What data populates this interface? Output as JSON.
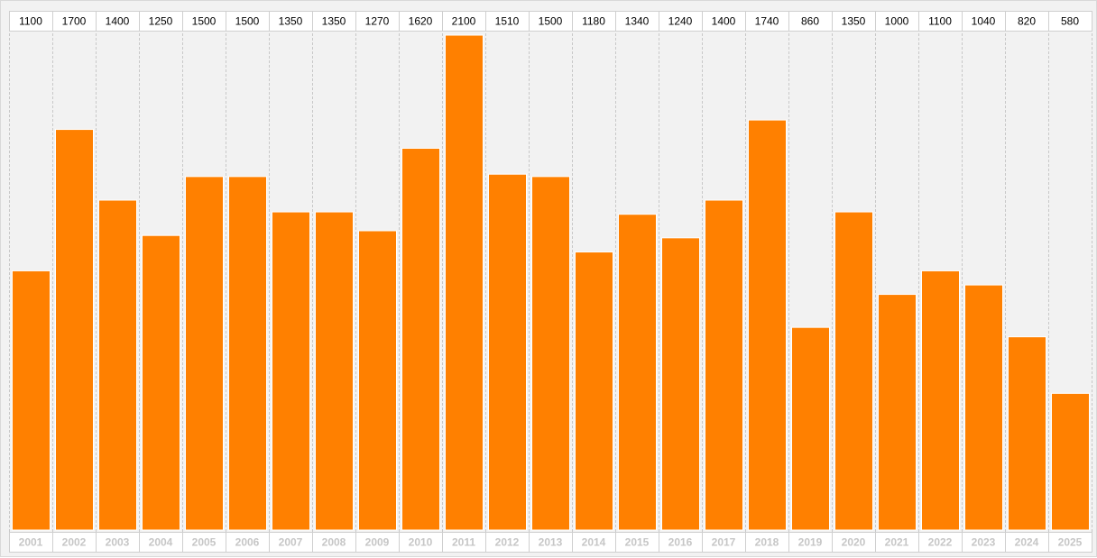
{
  "chart_data": {
    "type": "bar",
    "categories": [
      "2001",
      "2002",
      "2003",
      "2004",
      "2005",
      "2006",
      "2007",
      "2008",
      "2009",
      "2010",
      "2011",
      "2012",
      "2013",
      "2014",
      "2015",
      "2016",
      "2017",
      "2018",
      "2019",
      "2020",
      "2021",
      "2022",
      "2023",
      "2024",
      "2025"
    ],
    "values": [
      1100,
      1700,
      1400,
      1250,
      1500,
      1500,
      1350,
      1350,
      1270,
      1620,
      2100,
      1510,
      1500,
      1180,
      1340,
      1240,
      1400,
      1740,
      860,
      1350,
      1000,
      1100,
      1040,
      820,
      580
    ],
    "value_labels": [
      "1100",
      "1700",
      "1400",
      "1250",
      "1500",
      "1500",
      "1350",
      "1350",
      "1270",
      "1620",
      "2100",
      "1510",
      "1500",
      "1180",
      "1340",
      "1240",
      "1400",
      "1740",
      "860",
      "1350",
      "1000",
      "1100",
      "1040",
      "820",
      "580"
    ],
    "ylim": [
      0,
      2100
    ],
    "grid": "vertical dashed separators",
    "legend": "none",
    "colors": {
      "bar": "#ff8000",
      "bar_edge": "#ffffff",
      "plot_bg": "#f2f2f2",
      "label_box_bg": "#ffffff",
      "label_box_border": "#cfcfcf",
      "grid": "#c8c8c8",
      "year_text": "#c6c6c6",
      "value_text": "#000000"
    }
  }
}
